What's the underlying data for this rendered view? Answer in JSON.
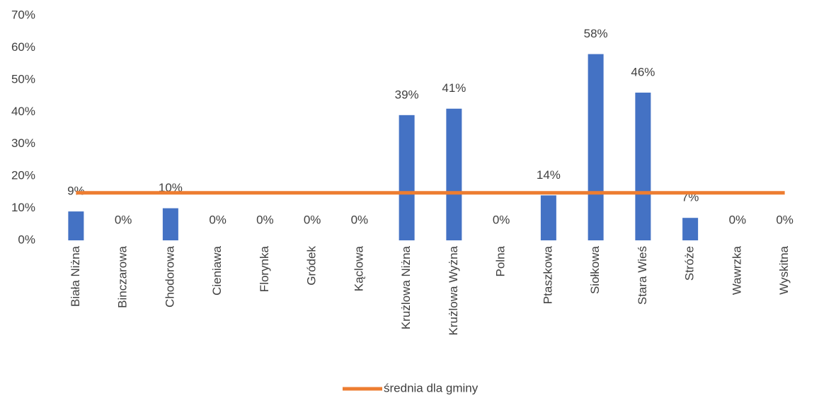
{
  "chart_data": {
    "type": "bar",
    "categories": [
      "Biała Niżna",
      "Binczarowa",
      "Chodorowa",
      "Cieniawa",
      "Florynka",
      "Gródek",
      "Kąclowa",
      "Krużlowa Niżna",
      "Krużlowa Wyżna",
      "Polna",
      "Ptaszkowa",
      "Siołkowa",
      "Stara Wieś",
      "Stróże",
      "Wawrzka",
      "Wyskitna"
    ],
    "series": [
      {
        "color": "#4472c4",
        "values": [
          9,
          0,
          10,
          0,
          0,
          0,
          0,
          39,
          41,
          0,
          14,
          58,
          46,
          7,
          0,
          0
        ],
        "value_labels": [
          "9%",
          "0%",
          "10%",
          "0%",
          "0%",
          "0%",
          "0%",
          "39%",
          "41%",
          "0%",
          "14%",
          "58%",
          "46%",
          "7%",
          "0%",
          "0%"
        ]
      },
      {
        "name": "średnia dla gminy",
        "type": "line",
        "color": "#ed7d31",
        "values": [
          14.8,
          14.8,
          14.8,
          14.8,
          14.8,
          14.8,
          14.8,
          14.8,
          14.8,
          14.8,
          14.8,
          14.8,
          14.8,
          14.8,
          14.8,
          14.8
        ]
      }
    ],
    "ylim": [
      0,
      70
    ],
    "yticks": [
      {
        "value": 0,
        "label": "0%"
      },
      {
        "value": 10,
        "label": "10%"
      },
      {
        "value": 20,
        "label": "20%"
      },
      {
        "value": 30,
        "label": "30%"
      },
      {
        "value": 40,
        "label": "40%"
      },
      {
        "value": 50,
        "label": "50%"
      },
      {
        "value": 60,
        "label": "60%"
      },
      {
        "value": 70,
        "label": "70%"
      }
    ],
    "legend": "bottom"
  }
}
